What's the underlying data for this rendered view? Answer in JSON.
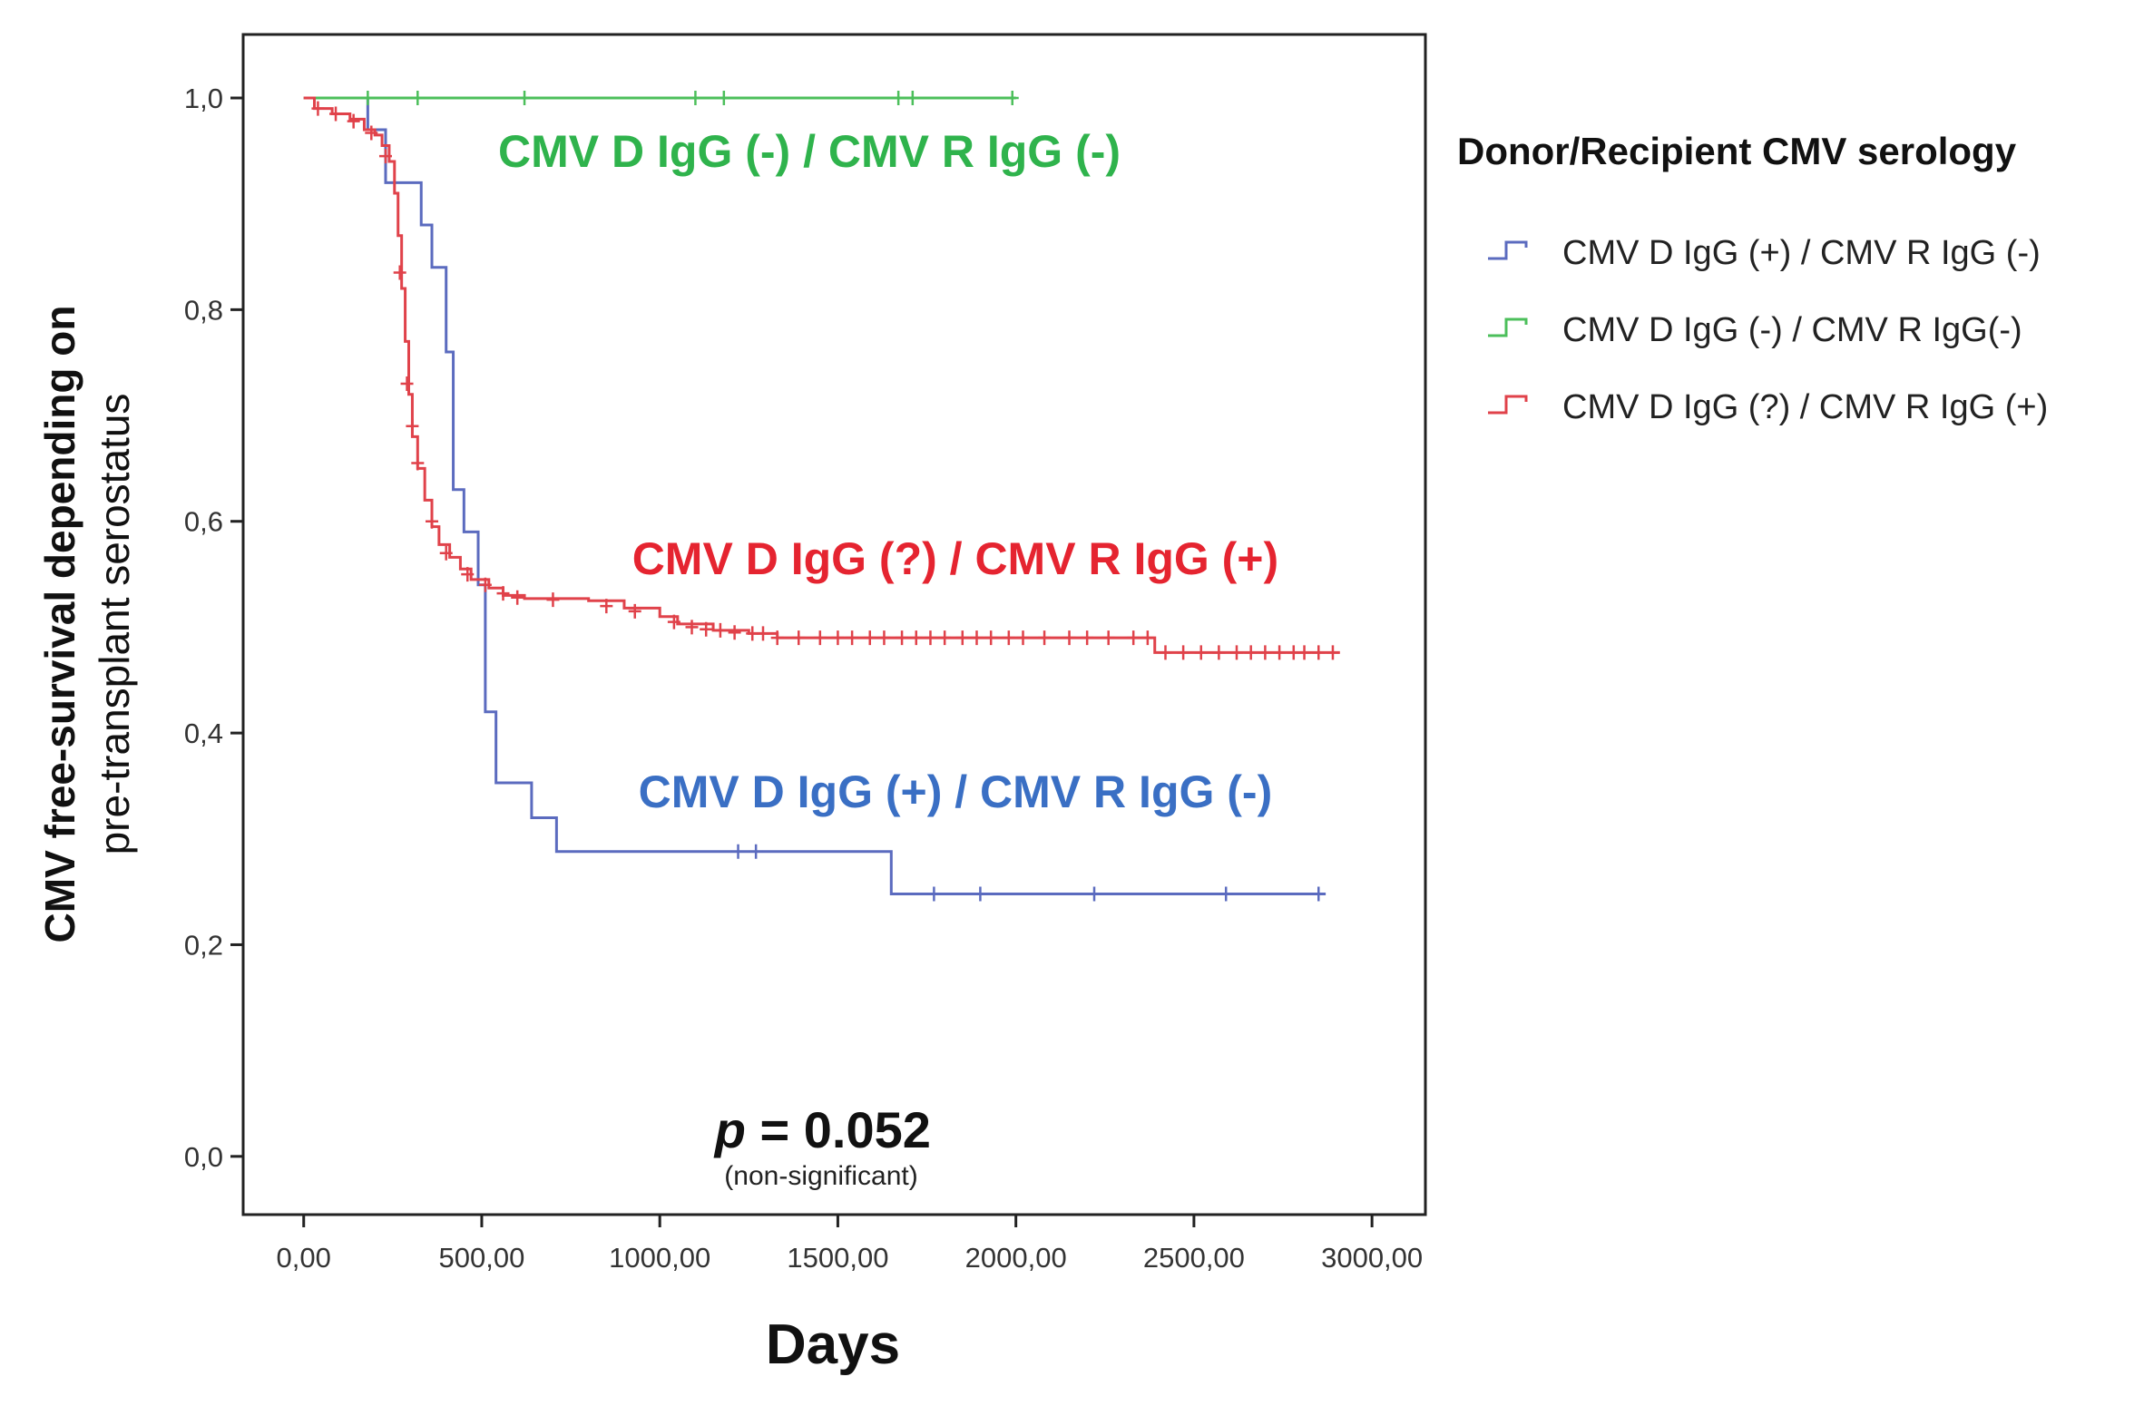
{
  "chart_data": {
    "type": "line",
    "subtype": "kaplan-meier",
    "xlabel": "Days",
    "ylabel_line1": "CMV free-survival depending on",
    "ylabel_line2": "pre-transplant serostatus",
    "xlim": [
      -170,
      3150
    ],
    "ylim": [
      -0.055,
      1.06
    ],
    "x_ticks": [
      0,
      500,
      1000,
      1500,
      2000,
      2500,
      3000
    ],
    "x_tick_labels": [
      "0,00",
      "500,00",
      "1000,00",
      "1500,00",
      "2000,00",
      "2500,00",
      "3000,00"
    ],
    "y_ticks": [
      0.0,
      0.2,
      0.4,
      0.6,
      0.8,
      1.0
    ],
    "y_tick_labels": [
      "0,0",
      "0,2",
      "0,4",
      "0,6",
      "0,8",
      "1,0"
    ],
    "legend_title": "Donor/Recipient CMV serology",
    "legend_position": "right",
    "series": [
      {
        "name": "CMV D IgG (+) / CMV R IgG (-)",
        "legend_label": "CMV D IgG (+) / CMV R IgG (-)",
        "color": "#5b6bbf",
        "label_color": "#3a6fc4",
        "steps": [
          [
            0,
            1.0
          ],
          [
            180,
            0.97
          ],
          [
            230,
            0.92
          ],
          [
            330,
            0.88
          ],
          [
            360,
            0.84
          ],
          [
            400,
            0.76
          ],
          [
            420,
            0.63
          ],
          [
            450,
            0.59
          ],
          [
            490,
            0.54
          ],
          [
            510,
            0.42
          ],
          [
            540,
            0.353
          ],
          [
            640,
            0.32
          ],
          [
            710,
            0.288
          ],
          [
            1650,
            0.248
          ],
          [
            2870,
            0.248
          ]
        ],
        "censored": [
          [
            1220,
            0.288
          ],
          [
            1270,
            0.288
          ],
          [
            1770,
            0.248
          ],
          [
            1900,
            0.248
          ],
          [
            2220,
            0.248
          ],
          [
            2590,
            0.248
          ],
          [
            2850,
            0.248
          ]
        ]
      },
      {
        "name": "CMV D IgG (-) / CMV R IgG(-)",
        "legend_label": "CMV D IgG (-)  / CMV R IgG(-)",
        "color": "#4cbf5b",
        "label_color": "#2fb34c",
        "steps": [
          [
            0,
            1.0
          ],
          [
            2000,
            1.0
          ]
        ],
        "censored": [
          [
            180,
            1.0
          ],
          [
            320,
            1.0
          ],
          [
            620,
            1.0
          ],
          [
            1100,
            1.0
          ],
          [
            1180,
            1.0
          ],
          [
            1670,
            1.0
          ],
          [
            1710,
            1.0
          ],
          [
            1990,
            1.0
          ]
        ]
      },
      {
        "name": "CMV D IgG (?) / CMV R IgG (+)",
        "legend_label": "CMV D IgG (?)  / CMV R IgG (+)",
        "color": "#e0424a",
        "label_color": "#e52430",
        "steps": [
          [
            0,
            1.0
          ],
          [
            30,
            0.99
          ],
          [
            80,
            0.985
          ],
          [
            130,
            0.98
          ],
          [
            170,
            0.97
          ],
          [
            200,
            0.965
          ],
          [
            220,
            0.955
          ],
          [
            240,
            0.94
          ],
          [
            255,
            0.91
          ],
          [
            265,
            0.87
          ],
          [
            275,
            0.82
          ],
          [
            285,
            0.77
          ],
          [
            295,
            0.72
          ],
          [
            305,
            0.68
          ],
          [
            320,
            0.65
          ],
          [
            340,
            0.62
          ],
          [
            360,
            0.595
          ],
          [
            380,
            0.578
          ],
          [
            410,
            0.566
          ],
          [
            440,
            0.555
          ],
          [
            470,
            0.545
          ],
          [
            520,
            0.537
          ],
          [
            560,
            0.53
          ],
          [
            620,
            0.527
          ],
          [
            800,
            0.525
          ],
          [
            900,
            0.518
          ],
          [
            1000,
            0.51
          ],
          [
            1050,
            0.503
          ],
          [
            1150,
            0.497
          ],
          [
            1250,
            0.494
          ],
          [
            1330,
            0.49
          ],
          [
            2390,
            0.476
          ],
          [
            2910,
            0.476
          ]
        ],
        "censored": [
          [
            40,
            0.99
          ],
          [
            90,
            0.985
          ],
          [
            140,
            0.978
          ],
          [
            190,
            0.967
          ],
          [
            230,
            0.945
          ],
          [
            270,
            0.835
          ],
          [
            290,
            0.73
          ],
          [
            305,
            0.69
          ],
          [
            320,
            0.655
          ],
          [
            360,
            0.6
          ],
          [
            400,
            0.57
          ],
          [
            460,
            0.55
          ],
          [
            510,
            0.54
          ],
          [
            560,
            0.532
          ],
          [
            600,
            0.528
          ],
          [
            700,
            0.526
          ],
          [
            850,
            0.52
          ],
          [
            930,
            0.515
          ],
          [
            1040,
            0.505
          ],
          [
            1090,
            0.5
          ],
          [
            1130,
            0.498
          ],
          [
            1170,
            0.497
          ],
          [
            1210,
            0.495
          ],
          [
            1260,
            0.494
          ],
          [
            1290,
            0.494
          ],
          [
            1330,
            0.49
          ],
          [
            1390,
            0.49
          ],
          [
            1450,
            0.49
          ],
          [
            1500,
            0.49
          ],
          [
            1540,
            0.49
          ],
          [
            1590,
            0.49
          ],
          [
            1630,
            0.49
          ],
          [
            1680,
            0.49
          ],
          [
            1720,
            0.49
          ],
          [
            1760,
            0.49
          ],
          [
            1800,
            0.49
          ],
          [
            1850,
            0.49
          ],
          [
            1890,
            0.49
          ],
          [
            1930,
            0.49
          ],
          [
            1980,
            0.49
          ],
          [
            2020,
            0.49
          ],
          [
            2080,
            0.49
          ],
          [
            2150,
            0.49
          ],
          [
            2200,
            0.49
          ],
          [
            2260,
            0.49
          ],
          [
            2330,
            0.49
          ],
          [
            2370,
            0.49
          ],
          [
            2420,
            0.476
          ],
          [
            2470,
            0.476
          ],
          [
            2520,
            0.476
          ],
          [
            2570,
            0.476
          ],
          [
            2620,
            0.476
          ],
          [
            2660,
            0.476
          ],
          [
            2700,
            0.476
          ],
          [
            2740,
            0.476
          ],
          [
            2780,
            0.476
          ],
          [
            2810,
            0.476
          ],
          [
            2850,
            0.476
          ],
          [
            2890,
            0.476
          ]
        ]
      }
    ],
    "annotations": [
      {
        "text": "CMV D IgG (-) / CMV R IgG (-)",
        "x": 1420,
        "y": 0.935,
        "color": "#2fb34c"
      },
      {
        "text": "CMV D IgG (?) / CMV R IgG (+)",
        "x": 1830,
        "y": 0.55,
        "color": "#e52430"
      },
      {
        "text": "CMV D IgG (+) / CMV R IgG (-)",
        "x": 1830,
        "y": 0.33,
        "color": "#3a6fc4"
      }
    ],
    "pvalue_label": "p",
    "pvalue_text": " = 0.052",
    "pvalue_note": "(non-significant)",
    "pvalue_x": 1450,
    "pvalue_y": 0.0
  }
}
